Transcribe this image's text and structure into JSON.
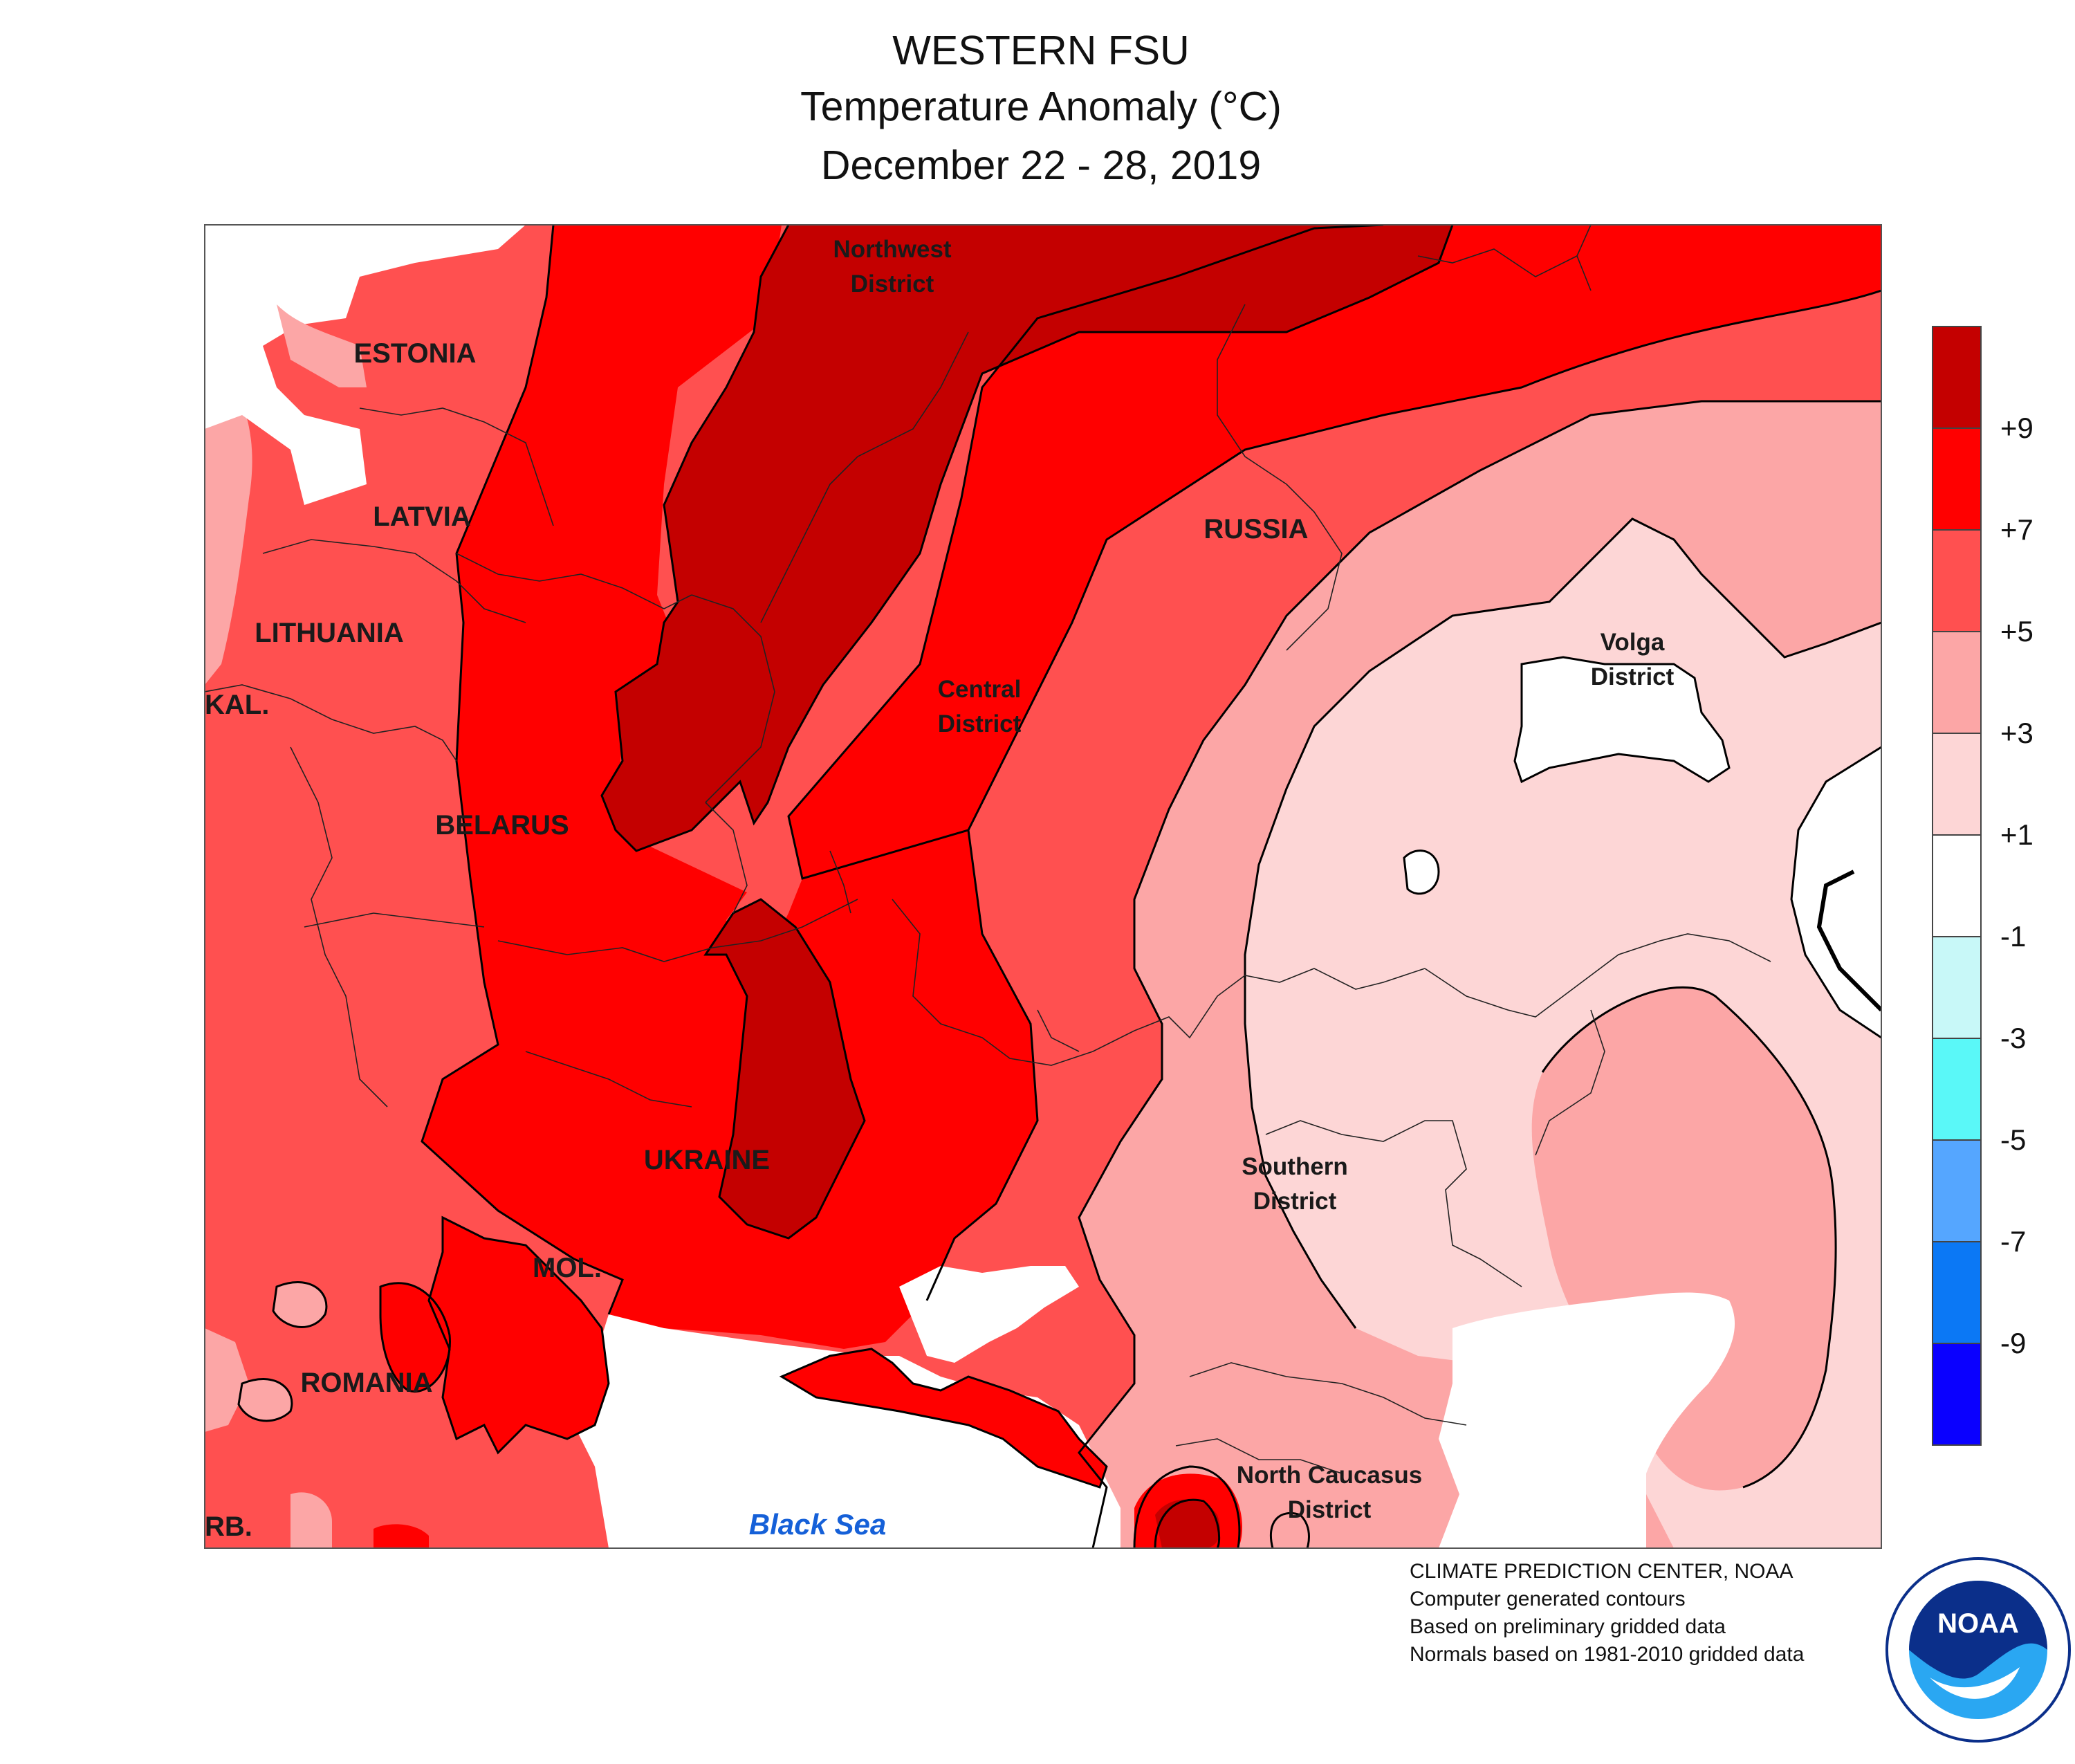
{
  "title": {
    "region": "WESTERN FSU",
    "variable": "Temperature Anomaly (°C)",
    "period": "December 22 - 28, 2019"
  },
  "map_labels": {
    "estonia": "ESTONIA",
    "latvia": "LATVIA",
    "lithuania": "LITHUANIA",
    "kaliningrad": "KAL.",
    "belarus": "BELARUS",
    "ukraine": "UKRAINE",
    "moldova": "MOL.",
    "romania": "ROMANIA",
    "serbia": "RB.",
    "russia": "RUSSIA",
    "northwest_1": "Northwest",
    "northwest_2": "District",
    "central_1": "Central",
    "central_2": "District",
    "volga_1": "Volga",
    "volga_2": "District",
    "southern_1": "Southern",
    "southern_2": "District",
    "caucasus_1": "North Caucasus",
    "caucasus_2": "District",
    "black_sea": "Black Sea"
  },
  "legend": {
    "ticks": [
      "+9",
      "+7",
      "+5",
      "+3",
      "+1",
      "-1",
      "-3",
      "-5",
      "-7",
      "-9"
    ],
    "colors": [
      "#c40000",
      "#ff0000",
      "#ff5050",
      "#fca6a6",
      "#fdd6d6",
      "#ffffff",
      "#c8f8f8",
      "#5af8f8",
      "#55a6ff",
      "#0b78f5",
      "#0a00ff"
    ]
  },
  "credits": {
    "line1": "CLIMATE PREDICTION CENTER, NOAA",
    "line2": "Computer generated contours",
    "line3": "Based on preliminary gridded data",
    "line4": "Normals based on 1981-2010 gridded data"
  },
  "logo": {
    "text": "NOAA"
  }
}
